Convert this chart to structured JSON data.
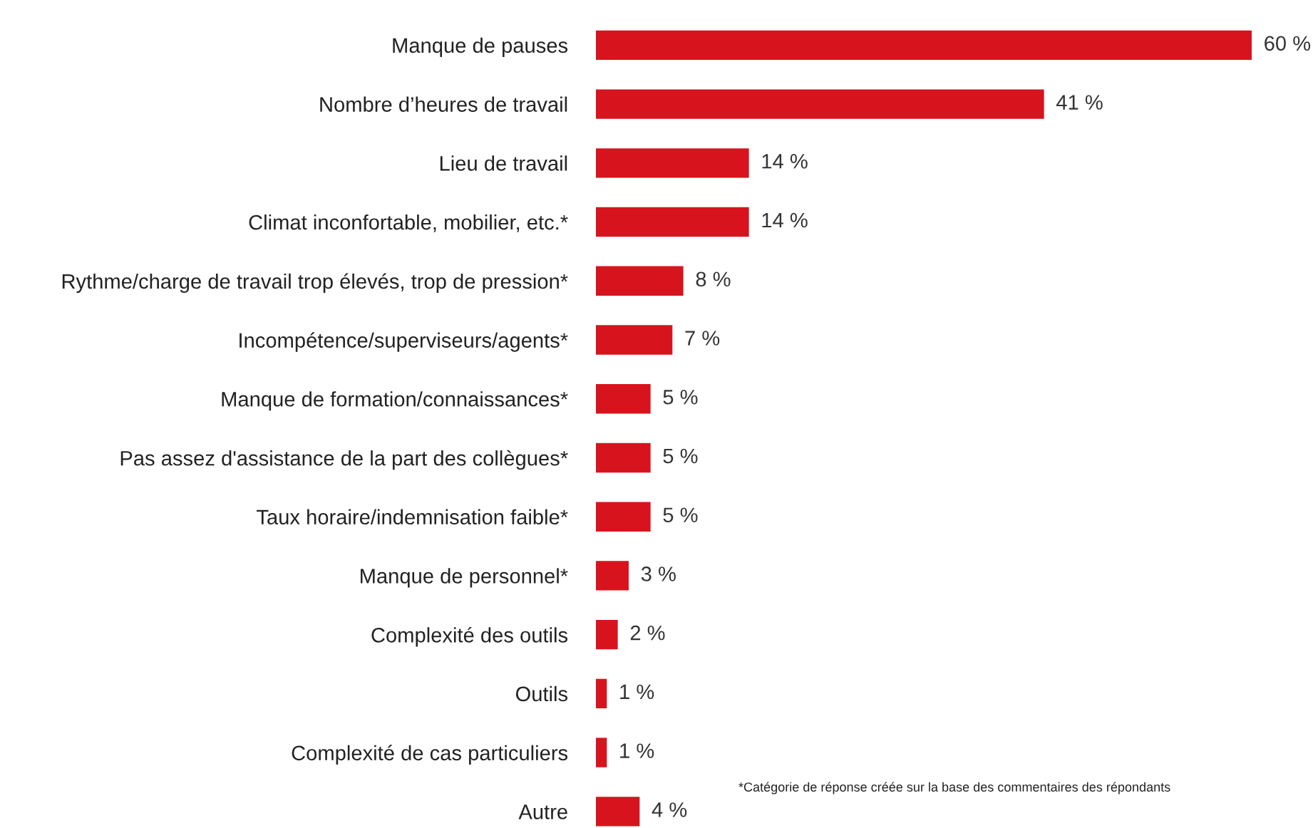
{
  "chart_data": {
    "type": "bar",
    "orientation": "horizontal",
    "color": "#d7141e",
    "categories": [
      "Manque de pauses",
      "Nombre d’heures de travail",
      "Lieu de travail",
      "Climat inconfortable, mobilier, etc.*",
      "Rythme/charge de travail trop élevés, trop de pression*",
      "Incompétence/superviseurs/agents*",
      "Manque de formation/connaissances*",
      "Pas assez d'assistance de la part des collègues*",
      "Taux horaire/indemnisation faible*",
      "Manque de personnel*",
      "Complexité des outils",
      "Outils",
      "Complexité de cas particuliers",
      "Autre"
    ],
    "values": [
      60,
      41,
      14,
      14,
      8,
      7,
      5,
      5,
      5,
      3,
      2,
      1,
      1,
      4
    ],
    "value_labels": [
      "60 %",
      "41 %",
      "14 %",
      "14 %",
      "8 %",
      "7 %",
      "5 %",
      "5 %",
      "5 %",
      "3 %",
      "2 %",
      "1 %",
      "1 %",
      "4 %"
    ],
    "annotations": [
      "*Catégorie de réponse créée sur la base des commentaires des répondants"
    ],
    "grid": false,
    "legend": false
  }
}
